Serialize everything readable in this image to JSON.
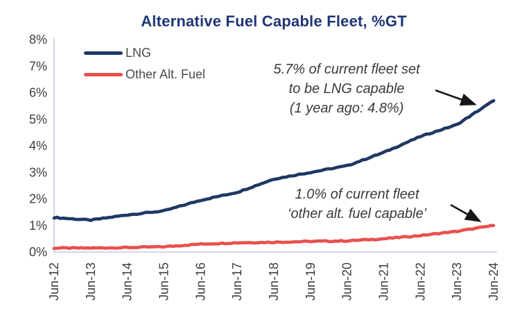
{
  "title": "Alternative Fuel Capable Fleet, %GT",
  "legend": [
    {
      "label": "LNG",
      "color": "#1F3864"
    },
    {
      "label": "Other Alt. Fuel",
      "color": "#E9504E"
    }
  ],
  "annotations": {
    "lng": {
      "lines": [
        "5.7% of current fleet set",
        "to be LNG capable",
        "(1 year ago: 4.8%)"
      ]
    },
    "other": {
      "lines": [
        "1.0% of current fleet",
        "‘other alt. fuel capable’"
      ]
    }
  },
  "chart_data": {
    "type": "line",
    "title": "Alternative Fuel Capable Fleet, %GT",
    "categories": [
      "Jun-12",
      "Jun-13",
      "Jun-14",
      "Jun-15",
      "Jun-16",
      "Jun-17",
      "Jun-18",
      "Jun-19",
      "Jun-20",
      "Jun-21",
      "Jun-22",
      "Jun-23",
      "Jun-24"
    ],
    "series": [
      {
        "name": "LNG",
        "color": "#1F3864",
        "values": [
          1.3,
          1.2,
          1.4,
          1.55,
          1.95,
          2.25,
          2.75,
          3.0,
          3.25,
          3.75,
          4.35,
          4.8,
          5.7
        ]
      },
      {
        "name": "Other Alt. Fuel",
        "color": "#E9504E",
        "values": [
          0.15,
          0.15,
          0.17,
          0.2,
          0.3,
          0.35,
          0.37,
          0.4,
          0.42,
          0.5,
          0.62,
          0.78,
          1.0
        ]
      }
    ],
    "xlabel": "",
    "ylabel": "",
    "ylim": [
      0,
      8
    ],
    "ytick_labels": [
      "0%",
      "1%",
      "2%",
      "3%",
      "4%",
      "5%",
      "6%",
      "7%",
      "8%"
    ],
    "grid": false,
    "legend_position": "top-left",
    "axis_color": "#CBC7E6",
    "tick_label_color": "#3D3D3D",
    "arrow_color": "#161616"
  }
}
